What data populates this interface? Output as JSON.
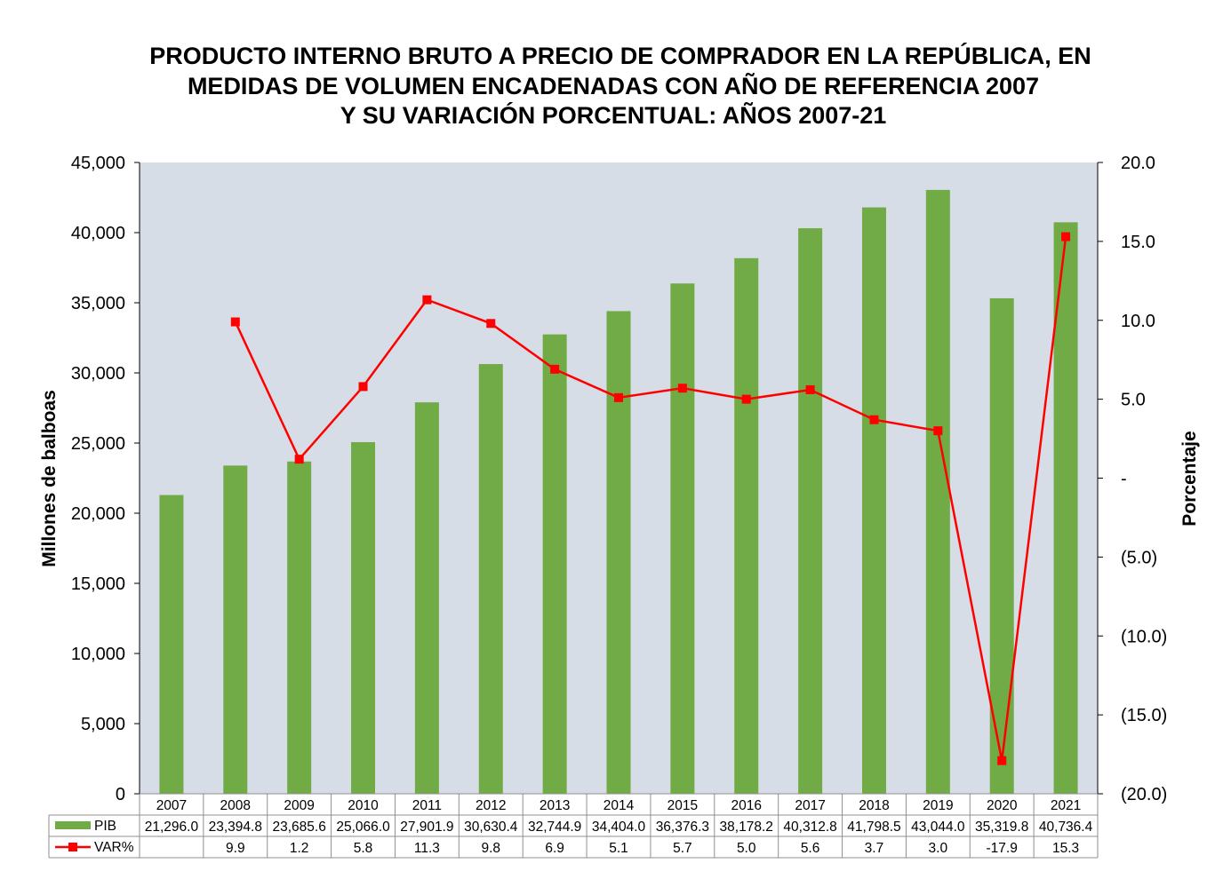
{
  "colors": {
    "plot_bg": "#d7dde6",
    "bar": "#70ab46",
    "line": "#ff0000",
    "grid_border": "#8f8f8f"
  },
  "chart_data": {
    "type": "bar",
    "title": [
      "PRODUCTO INTERNO BRUTO A PRECIO DE COMPRADOR EN LA REPÚBLICA, EN",
      "MEDIDAS DE VOLUMEN ENCADENADAS CON AÑO DE REFERENCIA 2007",
      "Y SU VARIACIÓN PORCENTUAL: AÑOS 2007-21"
    ],
    "categories": [
      "2007",
      "2008",
      "2009",
      "2010",
      "2011",
      "2012",
      "2013",
      "2014",
      "2015",
      "2016",
      "2017",
      "2018",
      "2019",
      "2020",
      "2021"
    ],
    "ylabel": "Millones de balboas",
    "y2label": "Porcentaje",
    "ylim": [
      0,
      45000
    ],
    "y2lim": [
      -20,
      20
    ],
    "yticks": [
      "0",
      "5,000",
      "10,000",
      "15,000",
      "20,000",
      "25,000",
      "30,000",
      "35,000",
      "40,000",
      "45,000"
    ],
    "y2ticks": [
      "(20.0)",
      "(15.0)",
      "(10.0)",
      "(5.0)",
      "-",
      "5.0",
      "10.0",
      "15.0",
      "20.0"
    ],
    "legend": "data table below the chart",
    "grid": false,
    "series": [
      {
        "name": "PIB",
        "type": "bar",
        "axis": "left",
        "values": [
          21296.0,
          23394.8,
          23685.6,
          25066.0,
          27901.9,
          30630.4,
          32744.9,
          34404.0,
          36376.3,
          38178.2,
          40312.8,
          41798.5,
          43044.0,
          35319.8,
          40736.4
        ],
        "labels": [
          "21,296.0",
          "23,394.8",
          "23,685.6",
          "25,066.0",
          "27,901.9",
          "30,630.4",
          "32,744.9",
          "34,404.0",
          "36,376.3",
          "38,178.2",
          "40,312.8",
          "41,798.5",
          "43,044.0",
          "35,319.8",
          "40,736.4"
        ]
      },
      {
        "name": "VAR%",
        "type": "line",
        "axis": "right",
        "values": [
          null,
          9.9,
          1.2,
          5.8,
          11.3,
          9.8,
          6.9,
          5.1,
          5.7,
          5.0,
          5.6,
          3.7,
          3.0,
          -17.9,
          15.3
        ],
        "labels": [
          "",
          "9.9",
          "1.2",
          "5.8",
          "11.3",
          "9.8",
          "6.9",
          "5.1",
          "5.7",
          "5.0",
          "5.6",
          "3.7",
          "3.0",
          "-17.9",
          "15.3"
        ]
      }
    ]
  }
}
